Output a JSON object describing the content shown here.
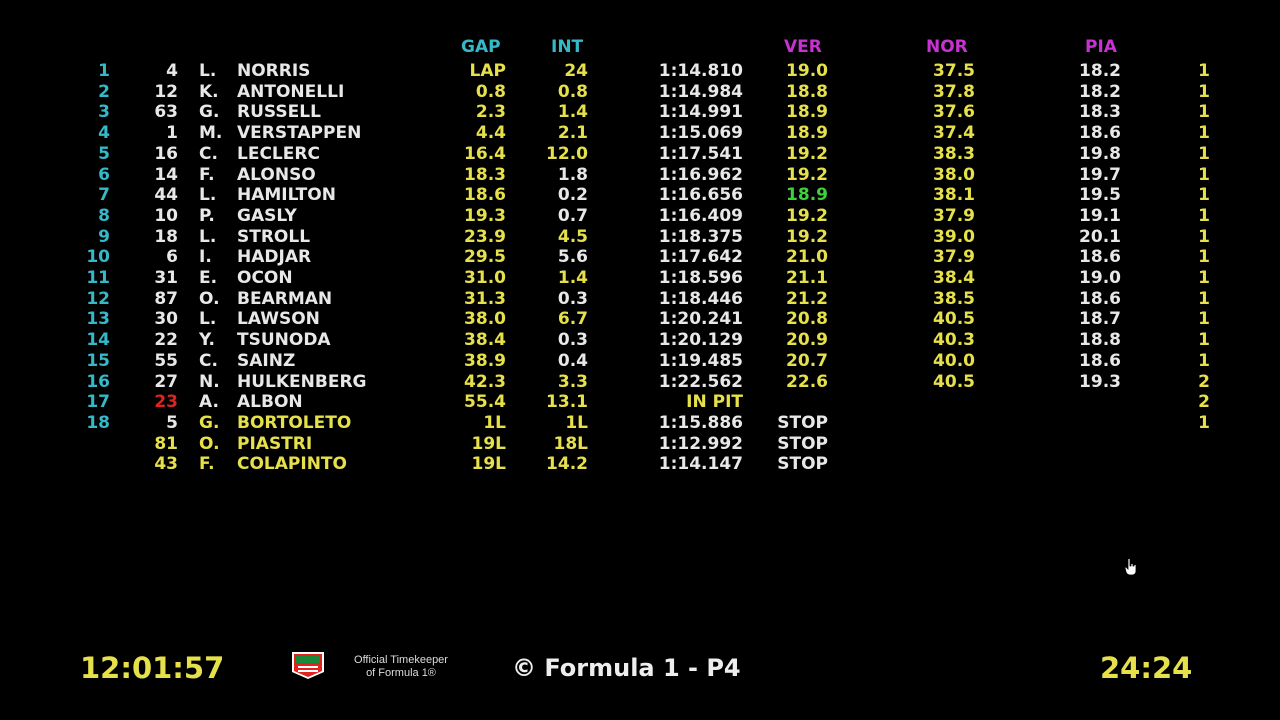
{
  "colors": {
    "cyan": "#35b9c9",
    "yellow": "#e6e04b",
    "white": "#e8e8e8",
    "magenta": "#c832d2",
    "green": "#3bd23b",
    "red": "#e0231f"
  },
  "headers": {
    "gap": "GAP",
    "int": "INT",
    "ver": "VER",
    "nor": "NOR",
    "pia": "PIA"
  },
  "rows": [
    {
      "pos": "1",
      "num": "4",
      "init": "L.",
      "name": "NORRIS",
      "gap": "LAP",
      "int": "24",
      "time": "1:14.810",
      "s1": "19.0",
      "s2": "37.5",
      "s3": "18.2",
      "pit": "1"
    },
    {
      "pos": "2",
      "num": "12",
      "init": "K.",
      "name": "ANTONELLI",
      "gap": "0.8",
      "int": "0.8",
      "time": "1:14.984",
      "s1": "18.8",
      "s2": "37.8",
      "s3": "18.2",
      "pit": "1"
    },
    {
      "pos": "3",
      "num": "63",
      "init": "G.",
      "name": "RUSSELL",
      "gap": "2.3",
      "int": "1.4",
      "time": "1:14.991",
      "s1": "18.9",
      "s2": "37.6",
      "s3": "18.3",
      "pit": "1"
    },
    {
      "pos": "4",
      "num": "1",
      "init": "M.",
      "name": "VERSTAPPEN",
      "gap": "4.4",
      "int": "2.1",
      "time": "1:15.069",
      "s1": "18.9",
      "s2": "37.4",
      "s3": "18.6",
      "pit": "1"
    },
    {
      "pos": "5",
      "num": "16",
      "init": "C.",
      "name": "LECLERC",
      "gap": "16.4",
      "int": "12.0",
      "time": "1:17.541",
      "s1": "19.2",
      "s2": "38.3",
      "s3": "19.8",
      "pit": "1"
    },
    {
      "pos": "6",
      "num": "14",
      "init": "F.",
      "name": "ALONSO",
      "gap": "18.3",
      "int": "1.8",
      "time": "1:16.962",
      "s1": "19.2",
      "s2": "38.0",
      "s3": "19.7",
      "pit": "1"
    },
    {
      "pos": "7",
      "num": "44",
      "init": "L.",
      "name": "HAMILTON",
      "gap": "18.6",
      "int": "0.2",
      "time": "1:16.656",
      "s1": "18.9",
      "s2": "38.1",
      "s3": "19.5",
      "pit": "1"
    },
    {
      "pos": "8",
      "num": "10",
      "init": "P.",
      "name": "GASLY",
      "gap": "19.3",
      "int": "0.7",
      "time": "1:16.409",
      "s1": "19.2",
      "s2": "37.9",
      "s3": "19.1",
      "pit": "1"
    },
    {
      "pos": "9",
      "num": "18",
      "init": "L.",
      "name": "STROLL",
      "gap": "23.9",
      "int": "4.5",
      "time": "1:18.375",
      "s1": "19.2",
      "s2": "39.0",
      "s3": "20.1",
      "pit": "1"
    },
    {
      "pos": "10",
      "num": "6",
      "init": "I.",
      "name": "HADJAR",
      "gap": "29.5",
      "int": "5.6",
      "time": "1:17.642",
      "s1": "21.0",
      "s2": "37.9",
      "s3": "18.6",
      "pit": "1"
    },
    {
      "pos": "11",
      "num": "31",
      "init": "E.",
      "name": "OCON",
      "gap": "31.0",
      "int": "1.4",
      "time": "1:18.596",
      "s1": "21.1",
      "s2": "38.4",
      "s3": "19.0",
      "pit": "1"
    },
    {
      "pos": "12",
      "num": "87",
      "init": "O.",
      "name": "BEARMAN",
      "gap": "31.3",
      "int": "0.3",
      "time": "1:18.446",
      "s1": "21.2",
      "s2": "38.5",
      "s3": "18.6",
      "pit": "1"
    },
    {
      "pos": "13",
      "num": "30",
      "init": "L.",
      "name": "LAWSON",
      "gap": "38.0",
      "int": "6.7",
      "time": "1:20.241",
      "s1": "20.8",
      "s2": "40.5",
      "s3": "18.7",
      "pit": "1"
    },
    {
      "pos": "14",
      "num": "22",
      "init": "Y.",
      "name": "TSUNODA",
      "gap": "38.4",
      "int": "0.3",
      "time": "1:20.129",
      "s1": "20.9",
      "s2": "40.3",
      "s3": "18.8",
      "pit": "1"
    },
    {
      "pos": "15",
      "num": "55",
      "init": "C.",
      "name": "SAINZ",
      "gap": "38.9",
      "int": "0.4",
      "time": "1:19.485",
      "s1": "20.7",
      "s2": "40.0",
      "s3": "18.6",
      "pit": "1"
    },
    {
      "pos": "16",
      "num": "27",
      "init": "N.",
      "name": "HULKENBERG",
      "gap": "42.3",
      "int": "3.3",
      "time": "1:22.562",
      "s1": "22.6",
      "s2": "40.5",
      "s3": "19.3",
      "pit": "2"
    },
    {
      "pos": "17",
      "num": "23",
      "init": "A.",
      "name": "ALBON",
      "gap": "55.4",
      "int": "13.1",
      "time": "IN PIT",
      "s1": "",
      "s2": "",
      "s3": "",
      "pit": "2"
    },
    {
      "pos": "18",
      "num": "5",
      "init": "G.",
      "name": "BORTOLETO",
      "gap": "1L",
      "int": "1L",
      "time": "1:15.886",
      "s1": "STOP",
      "s2": "",
      "s3": "",
      "pit": "1"
    },
    {
      "pos": "",
      "num": "81",
      "init": "O.",
      "name": "PIASTRI",
      "gap": "19L",
      "int": "18L",
      "time": "1:12.992",
      "s1": "STOP",
      "s2": "",
      "s3": "",
      "pit": ""
    },
    {
      "pos": "",
      "num": "43",
      "init": "F.",
      "name": "COLAPINTO",
      "gap": "19L",
      "int": "14.2",
      "time": "1:14.147",
      "s1": "STOP",
      "s2": "",
      "s3": "",
      "pit": ""
    }
  ],
  "styles": [
    {
      "name": "w",
      "gap": "y",
      "int": "y",
      "time": "w",
      "s1": "y",
      "s2": "y",
      "s3": "w",
      "pit": "y"
    },
    {
      "name": "w",
      "gap": "y",
      "int": "y",
      "time": "w",
      "s1": "y",
      "s2": "y",
      "s3": "w",
      "pit": "y"
    },
    {
      "name": "w",
      "gap": "y",
      "int": "y",
      "time": "w",
      "s1": "y",
      "s2": "y",
      "s3": "w",
      "pit": "y"
    },
    {
      "name": "w",
      "gap": "y",
      "int": "y",
      "time": "w",
      "s1": "y",
      "s2": "y",
      "s3": "w",
      "pit": "y"
    },
    {
      "name": "w",
      "gap": "y",
      "int": "y",
      "time": "w",
      "s1": "y",
      "s2": "y",
      "s3": "w",
      "pit": "y"
    },
    {
      "name": "w",
      "gap": "y",
      "int": "w",
      "time": "w",
      "s1": "y",
      "s2": "y",
      "s3": "w",
      "pit": "y"
    },
    {
      "name": "w",
      "gap": "y",
      "int": "w",
      "time": "w",
      "s1": "g",
      "s2": "y",
      "s3": "w",
      "pit": "y"
    },
    {
      "name": "w",
      "gap": "y",
      "int": "w",
      "time": "w",
      "s1": "y",
      "s2": "y",
      "s3": "w",
      "pit": "y"
    },
    {
      "name": "w",
      "gap": "y",
      "int": "y",
      "time": "w",
      "s1": "y",
      "s2": "y",
      "s3": "w",
      "pit": "y"
    },
    {
      "name": "w",
      "gap": "y",
      "int": "w",
      "time": "w",
      "s1": "y",
      "s2": "y",
      "s3": "w",
      "pit": "y"
    },
    {
      "name": "w",
      "gap": "y",
      "int": "y",
      "time": "w",
      "s1": "y",
      "s2": "y",
      "s3": "w",
      "pit": "y"
    },
    {
      "name": "w",
      "gap": "y",
      "int": "w",
      "time": "w",
      "s1": "y",
      "s2": "y",
      "s3": "w",
      "pit": "y"
    },
    {
      "name": "w",
      "gap": "y",
      "int": "y",
      "time": "w",
      "s1": "y",
      "s2": "y",
      "s3": "w",
      "pit": "y"
    },
    {
      "name": "w",
      "gap": "y",
      "int": "w",
      "time": "w",
      "s1": "y",
      "s2": "y",
      "s3": "w",
      "pit": "y"
    },
    {
      "name": "w",
      "gap": "y",
      "int": "w",
      "time": "w",
      "s1": "y",
      "s2": "y",
      "s3": "w",
      "pit": "y"
    },
    {
      "name": "w",
      "gap": "y",
      "int": "y",
      "time": "w",
      "s1": "y",
      "s2": "y",
      "s3": "w",
      "pit": "y"
    },
    {
      "name": "w",
      "gap": "y",
      "int": "y",
      "time": "y",
      "s1": "y",
      "s2": "y",
      "s3": "w",
      "pit": "y"
    },
    {
      "name": "y",
      "gap": "y",
      "int": "y",
      "time": "w",
      "s1": "w",
      "s2": "y",
      "s3": "w",
      "pit": "y"
    },
    {
      "name": "y",
      "gap": "y",
      "int": "y",
      "time": "w",
      "s1": "w",
      "s2": "y",
      "s3": "w",
      "pit": "y"
    },
    {
      "name": "y",
      "gap": "y",
      "int": "y",
      "time": "w",
      "s1": "w",
      "s2": "y",
      "s3": "w",
      "pit": "y"
    }
  ],
  "red_number_row": 16,
  "footer": {
    "clock": "12:01:57",
    "timekeeper_line1": "Official Timekeeper",
    "timekeeper_line2": "of Formula 1®",
    "session": "© Formula 1 - P4",
    "remaining": "24:24",
    "logo_icon": "tag-heuer-logo-icon",
    "cursor_icon": "hand-pointer-icon"
  }
}
